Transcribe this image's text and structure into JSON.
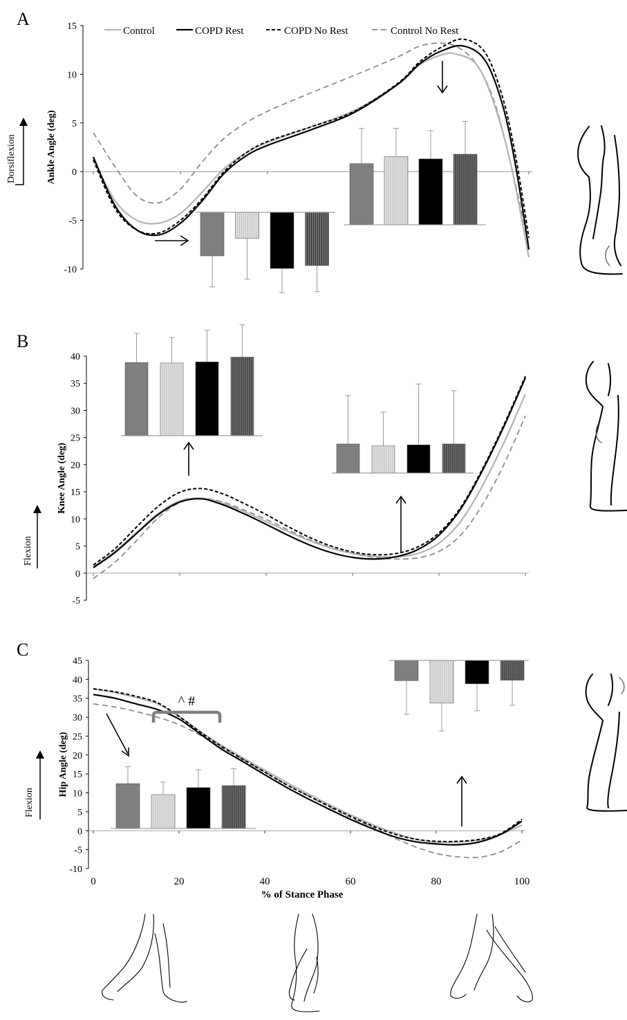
{
  "legend": [
    {
      "label": "Control",
      "color": "#b3b3b3",
      "dash": "none",
      "width": 2.2
    },
    {
      "label": "COPD Rest",
      "color": "#000000",
      "dash": "none",
      "width": 2.2
    },
    {
      "label": "COPD No Rest",
      "color": "#000000",
      "dash": "5 3",
      "width": 2.0
    },
    {
      "label": "Control No Rest",
      "color": "#8c8c8c",
      "dash": "8 5",
      "width": 1.8
    }
  ],
  "colors": {
    "control_bar": "#7f7f7f",
    "control_no_rest_bar": "#e0e0e0",
    "copd_rest_bar": "#000000",
    "copd_no_rest_bar": "#6e6e6e",
    "stats_bracket": "#808080"
  },
  "bottom_xaxis": {
    "label": "% of Stance Phase",
    "ticks": [
      "0",
      "20",
      "40",
      "60",
      "80",
      "100"
    ]
  },
  "chart_data": [
    {
      "panel_letter": "A",
      "type": "line",
      "ylabel": "Ankle Angle (deg)",
      "direction_label": "Dorsiflexion",
      "xlim": [
        0,
        100
      ],
      "ylim": [
        -10,
        15
      ],
      "yticks": [
        "-10",
        "-5",
        "0",
        "5",
        "10",
        "15"
      ],
      "series": [
        {
          "name": "Control",
          "x": [
            0,
            5,
            10,
            15,
            20,
            25,
            30,
            35,
            40,
            50,
            60,
            70,
            75,
            80,
            83,
            88,
            92,
            96,
            100
          ],
          "y": [
            1.3,
            -3.0,
            -5.0,
            -5.3,
            -4.3,
            -2.1,
            0.3,
            1.9,
            3.0,
            4.6,
            6.3,
            9.0,
            11.0,
            12.0,
            12.1,
            11.0,
            7.0,
            0.5,
            -8.8
          ]
        },
        {
          "name": "COPD Rest",
          "x": [
            0,
            5,
            10,
            15,
            20,
            25,
            30,
            35,
            40,
            50,
            60,
            70,
            75,
            80,
            85,
            90,
            94,
            97,
            100
          ],
          "y": [
            1.5,
            -3.5,
            -6.0,
            -6.5,
            -5.3,
            -3.0,
            -0.2,
            1.6,
            2.7,
            4.3,
            6.1,
            9.0,
            11.1,
            12.4,
            12.9,
            11.4,
            6.8,
            0.5,
            -8.0
          ]
        },
        {
          "name": "COPD No Rest",
          "x": [
            0,
            5,
            10,
            15,
            20,
            25,
            30,
            35,
            40,
            50,
            60,
            70,
            75,
            80,
            85,
            90,
            94,
            97,
            100
          ],
          "y": [
            1.2,
            -3.8,
            -6.0,
            -6.3,
            -5.0,
            -2.8,
            0.0,
            1.9,
            3.1,
            4.6,
            6.2,
            9.1,
            11.3,
            12.8,
            13.6,
            12.2,
            7.6,
            1.5,
            -6.8
          ]
        },
        {
          "name": "Control No Rest",
          "x": [
            0,
            5,
            10,
            15,
            20,
            25,
            30,
            35,
            40,
            50,
            60,
            70,
            75,
            80,
            84,
            88,
            92,
            96,
            100
          ],
          "y": [
            4.0,
            0.5,
            -2.5,
            -3.2,
            -1.8,
            1.0,
            3.4,
            5.0,
            6.2,
            8.1,
            9.9,
            11.8,
            12.9,
            13.2,
            12.7,
            11.0,
            7.3,
            0.5,
            -7.5
          ]
        }
      ],
      "insets": [
        {
          "categories": [
            "Control",
            "Control No Rest",
            "COPD Rest",
            "COPD No Rest"
          ],
          "values": [
            -4.5,
            -2.7,
            -5.8,
            -5.5
          ],
          "errors": [
            3.2,
            4.2,
            2.5,
            2.7
          ],
          "direction": "down"
        },
        {
          "categories": [
            "Control",
            "Control No Rest",
            "COPD Rest",
            "COPD No Rest"
          ],
          "values": [
            2.6,
            2.9,
            2.8,
            3.0
          ],
          "errors": [
            1.5,
            1.2,
            1.2,
            1.4
          ],
          "direction": "up"
        }
      ]
    },
    {
      "panel_letter": "B",
      "type": "line",
      "ylabel": "Knee Angle (deg)",
      "direction_label": "Flexion",
      "xlim": [
        0,
        100
      ],
      "ylim": [
        -5,
        40
      ],
      "yticks": [
        "-5",
        "0",
        "5",
        "10",
        "15",
        "20",
        "25",
        "30",
        "35",
        "40"
      ],
      "series": [
        {
          "name": "Control",
          "x": [
            0,
            5,
            10,
            15,
            20,
            25,
            30,
            35,
            40,
            45,
            50,
            55,
            60,
            65,
            70,
            75,
            80,
            85,
            90,
            95,
            100
          ],
          "y": [
            1.2,
            4.0,
            7.5,
            11.0,
            13.3,
            13.8,
            12.9,
            11.3,
            9.5,
            7.7,
            6.0,
            4.6,
            3.6,
            3.1,
            3.0,
            3.6,
            5.5,
            9.5,
            16.0,
            24.0,
            33.0
          ]
        },
        {
          "name": "COPD Rest",
          "x": [
            0,
            5,
            10,
            15,
            20,
            25,
            30,
            35,
            40,
            45,
            50,
            55,
            60,
            65,
            70,
            75,
            80,
            85,
            90,
            95,
            100
          ],
          "y": [
            1.0,
            3.8,
            7.3,
            10.8,
            13.1,
            13.7,
            12.6,
            10.9,
            9.0,
            7.0,
            5.2,
            3.8,
            2.9,
            2.6,
            3.0,
            4.3,
            7.0,
            11.8,
            18.8,
            27.0,
            36.0
          ]
        },
        {
          "name": "COPD No Rest",
          "x": [
            0,
            5,
            10,
            15,
            20,
            25,
            30,
            35,
            40,
            45,
            50,
            55,
            60,
            65,
            70,
            75,
            80,
            85,
            90,
            95,
            100
          ],
          "y": [
            1.5,
            4.5,
            8.5,
            12.3,
            14.9,
            15.6,
            14.6,
            12.8,
            10.8,
            8.6,
            6.6,
            5.0,
            3.9,
            3.4,
            3.6,
            4.8,
            7.4,
            12.1,
            19.1,
            27.3,
            36.3
          ]
        },
        {
          "name": "Control No Rest",
          "x": [
            0,
            5,
            10,
            15,
            20,
            25,
            30,
            35,
            40,
            45,
            50,
            55,
            60,
            65,
            70,
            75,
            80,
            85,
            90,
            95,
            100
          ],
          "y": [
            -1.0,
            2.0,
            6.0,
            10.2,
            13.0,
            13.8,
            13.1,
            11.6,
            9.9,
            8.0,
            6.2,
            4.7,
            3.6,
            2.9,
            2.6,
            2.8,
            4.0,
            7.0,
            12.5,
            20.0,
            29.0
          ]
        }
      ],
      "insets": [
        {
          "categories": [
            "Control",
            "Control No Rest",
            "COPD Rest",
            "COPD No Rest"
          ],
          "values": [
            13.8,
            13.7,
            13.9,
            14.8
          ],
          "errors": [
            5.5,
            4.8,
            6.0,
            6.1
          ],
          "direction": "up"
        },
        {
          "categories": [
            "Control",
            "Control No Rest",
            "COPD Rest",
            "COPD No Rest"
          ],
          "values": [
            3.0,
            2.8,
            2.9,
            3.0
          ],
          "errors": [
            5.0,
            3.5,
            6.3,
            5.5
          ],
          "direction": "up"
        }
      ]
    },
    {
      "panel_letter": "C",
      "type": "line",
      "ylabel": "Hip Angle (deg)",
      "direction_label": "Flexion",
      "xlabel": "% of Stance Phase",
      "xlim": [
        0,
        100
      ],
      "ylim": [
        -10,
        45
      ],
      "yticks": [
        "-10",
        "-5",
        "0",
        "5",
        "10",
        "15",
        "20",
        "25",
        "30",
        "35",
        "40",
        "45"
      ],
      "xticks": [
        "0",
        "20",
        "40",
        "60",
        "80",
        "100"
      ],
      "series": [
        {
          "name": "Control",
          "x": [
            0,
            5,
            10,
            15,
            20,
            25,
            30,
            35,
            40,
            45,
            50,
            55,
            60,
            65,
            70,
            75,
            80,
            85,
            90,
            95,
            100
          ],
          "y": [
            37.5,
            36.5,
            35.2,
            33.5,
            30.2,
            26.2,
            22.5,
            19.2,
            16.0,
            12.8,
            9.8,
            6.9,
            4.2,
            1.7,
            -0.5,
            -2.2,
            -3.0,
            -3.0,
            -2.5,
            -1.0,
            1.5
          ]
        },
        {
          "name": "COPD Rest",
          "x": [
            0,
            5,
            10,
            15,
            20,
            25,
            30,
            35,
            40,
            45,
            50,
            55,
            60,
            65,
            70,
            75,
            80,
            85,
            90,
            95,
            100
          ],
          "y": [
            36.0,
            35.0,
            33.5,
            32.0,
            29.5,
            25.5,
            21.5,
            18.2,
            14.8,
            11.5,
            8.5,
            5.7,
            3.0,
            0.6,
            -1.5,
            -2.9,
            -3.5,
            -3.7,
            -3.0,
            -1.0,
            2.5
          ]
        },
        {
          "name": "COPD No Rest",
          "x": [
            0,
            5,
            10,
            15,
            20,
            25,
            30,
            35,
            40,
            45,
            50,
            55,
            60,
            65,
            70,
            75,
            80,
            85,
            90,
            95,
            100
          ],
          "y": [
            37.5,
            36.7,
            35.5,
            33.8,
            30.2,
            26.0,
            22.2,
            18.8,
            15.5,
            12.2,
            9.3,
            6.5,
            3.8,
            1.3,
            -0.8,
            -2.2,
            -2.8,
            -2.8,
            -2.3,
            -0.8,
            3.0
          ]
        },
        {
          "name": "Control No Rest",
          "x": [
            0,
            5,
            10,
            15,
            20,
            25,
            30,
            35,
            40,
            45,
            50,
            55,
            60,
            65,
            70,
            75,
            80,
            85,
            90,
            95,
            100
          ],
          "y": [
            33.5,
            32.7,
            31.5,
            30.0,
            28.0,
            25.2,
            22.0,
            18.8,
            15.5,
            12.3,
            9.3,
            6.3,
            3.5,
            1.0,
            -1.8,
            -4.2,
            -6.0,
            -6.9,
            -7.0,
            -5.6,
            -2.5
          ]
        }
      ],
      "insets": [
        {
          "categories": [
            "Control",
            "Control No Rest",
            "COPD Rest",
            "COPD No Rest"
          ],
          "values": [
            9.0,
            6.8,
            8.2,
            8.6
          ],
          "errors": [
            3.4,
            2.5,
            3.6,
            3.4
          ],
          "direction": "up",
          "annotation": "^ #"
        },
        {
          "categories": [
            "Control",
            "Control No Rest",
            "COPD Rest",
            "COPD No Rest"
          ],
          "values": [
            -4.5,
            -9.5,
            -5.2,
            -4.4
          ],
          "errors": [
            7.5,
            6.2,
            6.0,
            5.6
          ],
          "direction": "down"
        }
      ]
    }
  ]
}
